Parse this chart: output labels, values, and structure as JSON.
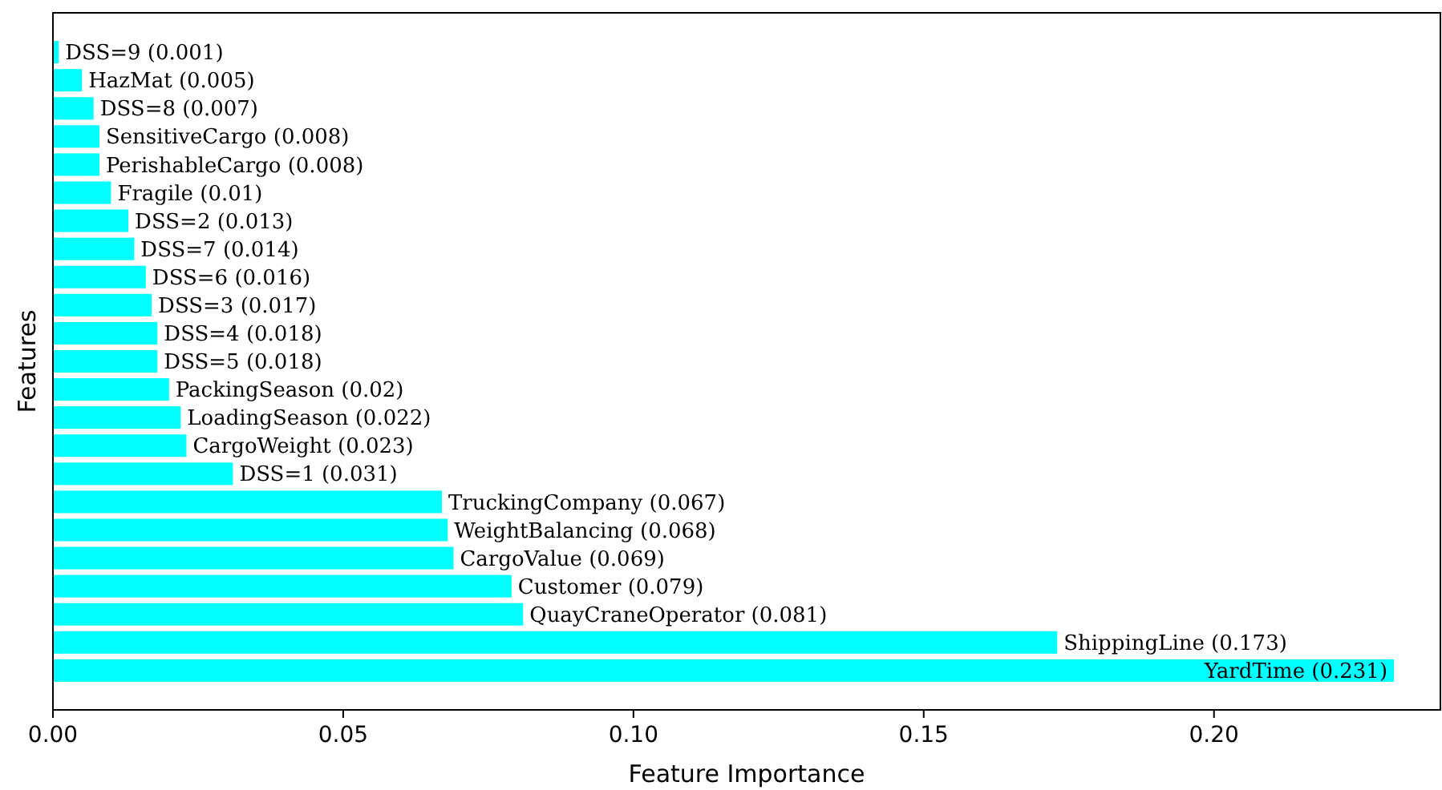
{
  "chart_data": {
    "type": "bar",
    "orientation": "horizontal",
    "xlabel": "Feature Importance",
    "ylabel": "Features",
    "categories": [
      "DSS=9 (0.001)",
      "HazMat (0.005)",
      "DSS=8 (0.007)",
      "SensitiveCargo (0.008)",
      "PerishableCargo (0.008)",
      "Fragile (0.01)",
      "DSS=2 (0.013)",
      "DSS=7 (0.014)",
      "DSS=6 (0.016)",
      "DSS=3 (0.017)",
      "DSS=4 (0.018)",
      "DSS=5 (0.018)",
      "PackingSeason (0.02)",
      "LoadingSeason (0.022)",
      "CargoWeight (0.023)",
      "DSS=1 (0.031)",
      "TruckingCompany (0.067)",
      "WeightBalancing (0.068)",
      "CargoValue (0.069)",
      "Customer (0.079)",
      "QuayCraneOperator (0.081)",
      "ShippingLine (0.173)",
      "YardTime (0.231)"
    ],
    "values": [
      0.001,
      0.005,
      0.007,
      0.008,
      0.008,
      0.01,
      0.013,
      0.014,
      0.016,
      0.017,
      0.018,
      0.018,
      0.02,
      0.022,
      0.023,
      0.031,
      0.067,
      0.068,
      0.069,
      0.079,
      0.081,
      0.173,
      0.231
    ],
    "color": "#00ffff",
    "xlim": [
      0,
      0.239
    ],
    "xticks": [
      {
        "value": 0,
        "label": "0.00"
      },
      {
        "value": 0.05,
        "label": "0.05"
      },
      {
        "value": 0.1,
        "label": "0.10"
      },
      {
        "value": 0.15,
        "label": "0.15"
      },
      {
        "value": 0.2,
        "label": "0.20"
      }
    ],
    "tick_labels": "x",
    "grid": false
  }
}
